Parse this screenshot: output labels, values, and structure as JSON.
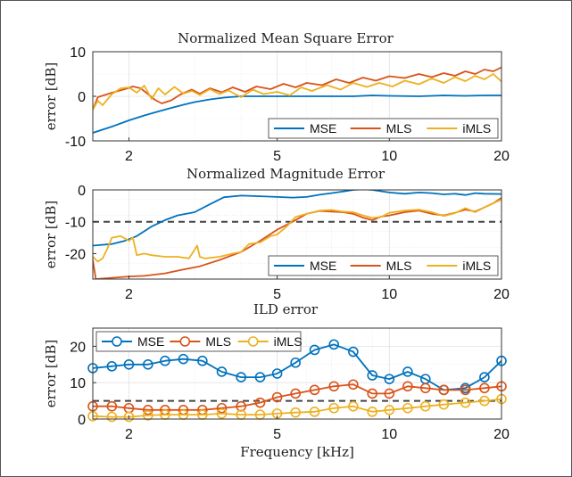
{
  "chart_data": [
    {
      "type": "line",
      "title": "Normalized Mean Square Error",
      "xlabel": "",
      "ylabel": "error [dB]",
      "xscale": "log",
      "xlim": [
        1.6,
        20
      ],
      "ylim": [
        -10,
        10
      ],
      "xticks": [
        2,
        5,
        10,
        20
      ],
      "yticks": [
        -10,
        0,
        10
      ],
      "grid": true,
      "legend": "bottom-right, horizontal",
      "series": [
        {
          "name": "MSE",
          "color": "#0072BD",
          "x": [
            1.6,
            1.8,
            2,
            2.2,
            2.4,
            2.6,
            2.8,
            3,
            3.3,
            3.6,
            4,
            4.5,
            5,
            6,
            7,
            8,
            9,
            10,
            12,
            14,
            16,
            18,
            20
          ],
          "y": [
            -8.2,
            -6.8,
            -5.4,
            -4.3,
            -3.4,
            -2.6,
            -1.9,
            -1.3,
            -0.7,
            -0.3,
            0,
            0,
            0,
            0,
            0,
            0,
            0.2,
            0.1,
            0,
            0.2,
            0.1,
            0.2,
            0.2
          ]
        },
        {
          "name": "MLS",
          "color": "#D95319",
          "x": [
            1.6,
            1.65,
            1.8,
            1.95,
            2.05,
            2.15,
            2.25,
            2.35,
            2.45,
            2.6,
            2.75,
            2.95,
            3.1,
            3.3,
            3.55,
            3.8,
            4.1,
            4.4,
            4.8,
            5.2,
            5.6,
            6,
            6.6,
            7.2,
            7.8,
            8.5,
            9.2,
            10,
            11,
            12,
            13,
            14,
            15,
            16,
            17,
            18,
            19,
            20
          ],
          "y": [
            -3,
            -0.2,
            0.8,
            1.6,
            2.2,
            1.8,
            0.5,
            -0.8,
            -1.6,
            -0.9,
            0.4,
            1.5,
            0.6,
            1.8,
            0.9,
            2,
            1,
            2.2,
            1.6,
            2.8,
            2,
            3,
            2.5,
            3.8,
            3,
            4.2,
            3.5,
            4.5,
            4.1,
            5,
            4.3,
            5.2,
            4.6,
            5.6,
            5,
            6,
            5.6,
            6.5
          ]
        },
        {
          "name": "iMLS",
          "color": "#EDB120",
          "x": [
            1.6,
            1.65,
            1.7,
            1.8,
            1.9,
            2,
            2.1,
            2.2,
            2.3,
            2.4,
            2.5,
            2.65,
            2.8,
            2.95,
            3.1,
            3.3,
            3.5,
            3.7,
            4,
            4.3,
            4.6,
            5,
            5.4,
            5.8,
            6.2,
            6.8,
            7.4,
            8,
            8.7,
            9.4,
            10.2,
            11,
            12,
            13,
            14,
            15,
            16,
            17,
            18,
            19,
            20
          ],
          "y": [
            -3,
            -1,
            -2,
            0.5,
            1.8,
            2,
            0.8,
            2.4,
            -0.6,
            1.8,
            0.4,
            2.1,
            0.6,
            1.2,
            0.3,
            1.6,
            0.5,
            1.3,
            -0.2,
            1.5,
            0.5,
            1,
            0.2,
            2,
            1.2,
            2.5,
            1.5,
            3,
            2.1,
            3,
            2.2,
            3.5,
            2.7,
            4,
            3,
            4.3,
            3.4,
            4.6,
            3.8,
            5,
            3.3
          ]
        }
      ]
    },
    {
      "type": "line",
      "title": "Normalized Magnitude Error",
      "xlabel": "",
      "ylabel": "error [dB]",
      "xscale": "log",
      "xlim": [
        1.6,
        20
      ],
      "ylim": [
        -28,
        0
      ],
      "xticks": [
        2,
        5,
        10,
        20
      ],
      "yticks": [
        -20,
        -10,
        0
      ],
      "reference_line": -10,
      "grid": true,
      "legend": "bottom-right, horizontal",
      "series": [
        {
          "name": "MSE",
          "color": "#0072BD",
          "x": [
            1.6,
            1.8,
            1.95,
            2.1,
            2.3,
            2.5,
            2.7,
            3,
            3.3,
            3.6,
            4,
            4.5,
            5,
            5.5,
            6,
            6.5,
            7,
            7.5,
            8,
            8.5,
            9,
            10,
            11,
            12,
            13,
            14,
            15,
            16,
            17,
            18,
            20
          ],
          "y": [
            -17.5,
            -17,
            -16,
            -14.5,
            -11.5,
            -9.5,
            -8,
            -7,
            -4.5,
            -2.3,
            -1.8,
            -2,
            -2.2,
            -2.4,
            -2.2,
            -1.5,
            -1,
            -0.5,
            0,
            0.2,
            0,
            -0.8,
            -1.2,
            -0.8,
            -1,
            -1.4,
            -1.2,
            -1.6,
            -1,
            -1.2,
            -1.3
          ]
        },
        {
          "name": "MLS",
          "color": "#D95319",
          "x": [
            1.6,
            1.63,
            1.8,
            2,
            2.2,
            2.5,
            2.8,
            3.1,
            3.5,
            4,
            4.5,
            5,
            5.5,
            6,
            6.5,
            7,
            7.5,
            8,
            8.5,
            9,
            9.5,
            10,
            11,
            12,
            13,
            14,
            15,
            16,
            17,
            18,
            19,
            20
          ],
          "y": [
            -22,
            -28,
            -27.6,
            -27.2,
            -27,
            -26.2,
            -25,
            -24,
            -22,
            -19.5,
            -16,
            -12.5,
            -10,
            -7.5,
            -6.6,
            -6.8,
            -7,
            -7.5,
            -8.7,
            -9.5,
            -8.4,
            -8,
            -7,
            -6.5,
            -7.5,
            -8,
            -7.2,
            -6.2,
            -6.8,
            -5.5,
            -4.2,
            -2.5
          ]
        },
        {
          "name": "iMLS",
          "color": "#EDB120",
          "x": [
            1.6,
            1.65,
            1.7,
            1.75,
            1.8,
            1.9,
            2,
            2.05,
            2.1,
            2.2,
            2.3,
            2.5,
            2.7,
            2.9,
            3.05,
            3.1,
            3.2,
            3.5,
            3.8,
            4,
            4.2,
            4.5,
            4.8,
            5,
            5.3,
            5.6,
            6,
            6.5,
            7,
            7.5,
            8,
            8.5,
            9,
            9.5,
            10,
            11,
            12,
            13,
            14,
            15,
            16,
            17,
            18,
            19,
            20
          ],
          "y": [
            -21,
            -22.5,
            -21.5,
            -18.5,
            -15,
            -14.5,
            -16,
            -15,
            -20.5,
            -20,
            -20.5,
            -21,
            -21,
            -21.5,
            -17.5,
            -21,
            -21.5,
            -21,
            -20,
            -19.5,
            -17,
            -16.5,
            -14.5,
            -14,
            -11.5,
            -8.5,
            -7.5,
            -6.5,
            -6.3,
            -6.8,
            -7,
            -8,
            -8.8,
            -8.5,
            -7.2,
            -6.5,
            -6.2,
            -7,
            -8.2,
            -7.3,
            -5.7,
            -7,
            -5.5,
            -4.2,
            -3
          ]
        }
      ]
    },
    {
      "type": "line",
      "title": "ILD error",
      "xlabel": "Frequency [kHz]",
      "ylabel": "error [dB]",
      "xscale": "log",
      "xlim": [
        1.6,
        20
      ],
      "ylim": [
        0,
        25
      ],
      "xticks": [
        2,
        5,
        10,
        20
      ],
      "yticks": [
        0,
        10,
        20
      ],
      "reference_line": 5,
      "grid": true,
      "markers": "circle",
      "legend": "top-left, horizontal",
      "series": [
        {
          "name": "MSE",
          "color": "#0072BD",
          "x": [
            1.6,
            1.8,
            2,
            2.25,
            2.5,
            2.8,
            3.15,
            3.55,
            4,
            4.5,
            5,
            5.6,
            6.3,
            7.1,
            8,
            9,
            10,
            11.2,
            12.5,
            14,
            16,
            18,
            20
          ],
          "y": [
            14,
            14.5,
            15,
            15,
            16,
            16.5,
            16,
            13,
            11.5,
            11.5,
            12.5,
            15.5,
            19,
            20.5,
            18.5,
            12,
            11,
            13,
            11,
            8,
            8.5,
            11.5,
            16
          ]
        },
        {
          "name": "MLS",
          "color": "#D95319",
          "x": [
            1.6,
            1.8,
            2,
            2.25,
            2.5,
            2.8,
            3.15,
            3.55,
            4,
            4.5,
            5,
            5.6,
            6.3,
            7.1,
            8,
            9,
            10,
            11.2,
            12.5,
            14,
            16,
            18,
            20
          ],
          "y": [
            3.5,
            3.5,
            3,
            2.5,
            2.5,
            2.5,
            2.5,
            3,
            3.5,
            4.5,
            6,
            7,
            8,
            9,
            9.5,
            7,
            7,
            9,
            8.5,
            8,
            8,
            8.5,
            9
          ]
        },
        {
          "name": "iMLS",
          "color": "#EDB120",
          "x": [
            1.6,
            1.8,
            2,
            2.25,
            2.5,
            2.8,
            3.15,
            3.55,
            4,
            4.5,
            5,
            5.6,
            6.3,
            7.1,
            8,
            9,
            10,
            11.2,
            12.5,
            14,
            16,
            18,
            20
          ],
          "y": [
            0.8,
            0.6,
            0.6,
            1,
            1.2,
            1.2,
            1.2,
            1.5,
            1.2,
            1.2,
            1.5,
            1.8,
            2,
            3,
            3.5,
            2,
            2.5,
            3,
            3.5,
            4,
            4.5,
            5,
            5.5
          ]
        }
      ]
    }
  ]
}
